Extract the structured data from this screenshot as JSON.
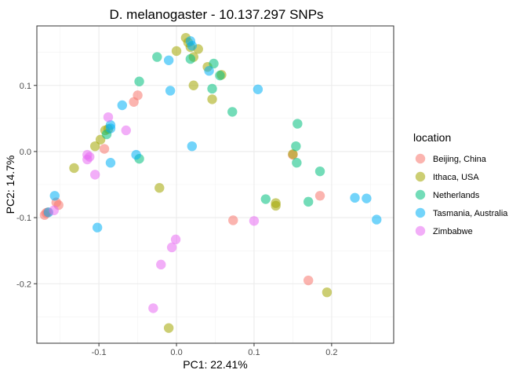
{
  "chart_data": {
    "type": "scatter",
    "title": "D. melanogaster - 10.137.297 SNPs",
    "xlabel": "PC1: 22.41%",
    "ylabel": "PC2: 14.7%",
    "xlim": [
      -0.18,
      0.28
    ],
    "ylim": [
      -0.29,
      0.19
    ],
    "x_ticks": [
      -0.1,
      0.0,
      0.1,
      0.2
    ],
    "x_tick_labels": [
      "-0.1",
      "0.0",
      "0.1",
      "0.2"
    ],
    "y_ticks": [
      -0.2,
      -0.1,
      0.0,
      0.1
    ],
    "y_tick_labels": [
      "-0.2",
      "-0.1",
      "0.0",
      "0.1"
    ],
    "grid": true,
    "legend": {
      "title": "location",
      "position": "right"
    },
    "series": [
      {
        "name": "Beijing, China",
        "color": "#F8766D",
        "points": [
          [
            -0.17,
            -0.096
          ],
          [
            -0.168,
            -0.093
          ],
          [
            -0.166,
            -0.092
          ],
          [
            -0.155,
            -0.077
          ],
          [
            -0.152,
            -0.081
          ],
          [
            -0.055,
            0.075
          ],
          [
            -0.05,
            0.085
          ],
          [
            -0.093,
            0.004
          ],
          [
            0.073,
            -0.104
          ],
          [
            0.15,
            -0.005
          ],
          [
            0.185,
            -0.067
          ],
          [
            0.17,
            -0.195
          ]
        ]
      },
      {
        "name": "Ithaca, USA",
        "color": "#A3A500",
        "points": [
          [
            0.012,
            0.172
          ],
          [
            0.015,
            0.165
          ],
          [
            0.018,
            0.158
          ],
          [
            0.022,
            0.143
          ],
          [
            0.028,
            0.155
          ],
          [
            0.0,
            0.152
          ],
          [
            0.04,
            0.128
          ],
          [
            0.058,
            0.116
          ],
          [
            0.046,
            0.079
          ],
          [
            0.022,
            0.1
          ],
          [
            -0.098,
            0.018
          ],
          [
            -0.092,
            0.032
          ],
          [
            -0.088,
            0.034
          ],
          [
            -0.105,
            0.008
          ],
          [
            -0.132,
            -0.025
          ],
          [
            -0.022,
            -0.055
          ],
          [
            0.128,
            -0.078
          ],
          [
            0.128,
            -0.082
          ],
          [
            0.15,
            -0.004
          ],
          [
            0.194,
            -0.213
          ],
          [
            -0.01,
            -0.267
          ]
        ]
      },
      {
        "name": "Netherlands",
        "color": "#00BF7D",
        "points": [
          [
            -0.025,
            0.143
          ],
          [
            -0.048,
            0.106
          ],
          [
            0.048,
            0.133
          ],
          [
            0.056,
            0.115
          ],
          [
            0.046,
            0.095
          ],
          [
            0.018,
            0.14
          ],
          [
            0.072,
            0.06
          ],
          [
            -0.09,
            0.026
          ],
          [
            -0.048,
            -0.011
          ],
          [
            0.115,
            -0.072
          ],
          [
            0.154,
            0.008
          ],
          [
            0.156,
            0.042
          ],
          [
            0.155,
            -0.017
          ],
          [
            0.17,
            -0.076
          ],
          [
            0.185,
            -0.03
          ]
        ]
      },
      {
        "name": "Tasmania, Australia",
        "color": "#00B0F6",
        "points": [
          [
            0.018,
            0.167
          ],
          [
            0.02,
            0.16
          ],
          [
            -0.01,
            0.138
          ],
          [
            -0.008,
            0.092
          ],
          [
            0.042,
            0.122
          ],
          [
            0.105,
            0.094
          ],
          [
            -0.07,
            0.07
          ],
          [
            -0.085,
            0.04
          ],
          [
            -0.085,
            0.035
          ],
          [
            -0.052,
            -0.005
          ],
          [
            -0.085,
            -0.017
          ],
          [
            0.02,
            0.008
          ],
          [
            -0.157,
            -0.067
          ],
          [
            -0.102,
            -0.115
          ],
          [
            -0.165,
            -0.092
          ],
          [
            0.23,
            -0.07
          ],
          [
            0.245,
            -0.071
          ],
          [
            0.258,
            -0.103
          ]
        ]
      },
      {
        "name": "Zimbabwe",
        "color": "#E76BF3",
        "points": [
          [
            -0.088,
            0.052
          ],
          [
            -0.065,
            0.032
          ],
          [
            -0.115,
            -0.005
          ],
          [
            -0.115,
            -0.012
          ],
          [
            -0.112,
            -0.008
          ],
          [
            -0.105,
            -0.035
          ],
          [
            -0.158,
            -0.089
          ],
          [
            -0.001,
            -0.133
          ],
          [
            -0.006,
            -0.145
          ],
          [
            -0.02,
            -0.171
          ],
          [
            -0.03,
            -0.237
          ],
          [
            0.1,
            -0.105
          ]
        ]
      }
    ]
  }
}
